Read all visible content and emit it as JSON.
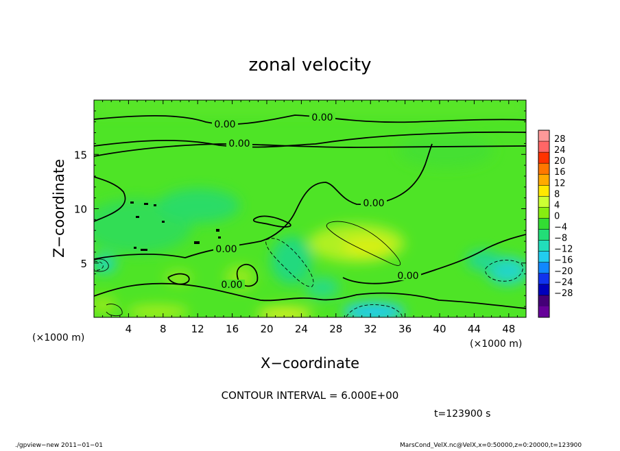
{
  "chart_data": {
    "type": "heatmap",
    "title": "zonal velocity",
    "xlabel": "X−coordinate",
    "ylabel": "Z−coordinate",
    "x_unit": "(×1000 m)",
    "y_unit": "(×1000 m)",
    "xlim": [
      0,
      50
    ],
    "ylim": [
      0,
      20
    ],
    "x_ticks": [
      "4",
      "8",
      "12",
      "16",
      "20",
      "24",
      "28",
      "32",
      "36",
      "40",
      "44",
      "48"
    ],
    "x_tick_values": [
      4,
      8,
      12,
      16,
      20,
      24,
      28,
      32,
      36,
      40,
      44,
      48
    ],
    "y_ticks": [
      "5",
      "10",
      "15"
    ],
    "y_tick_values": [
      5,
      10,
      15
    ],
    "contour_interval_label": "CONTOUR INTERVAL = 6.000E+00",
    "time_label": "t=123900 s",
    "contour_labels": [
      "0.00",
      "0.00",
      "0.00",
      "0.00",
      "0.00",
      "0.00",
      "0.00"
    ],
    "colorbar": {
      "labels": [
        "28",
        "24",
        "20",
        "16",
        "12",
        "8",
        "4",
        "0",
        "−4",
        "−8",
        "−12",
        "−16",
        "−20",
        "−24",
        "−28"
      ],
      "colors": [
        "#ff9999",
        "#ff6666",
        "#ff3300",
        "#ff7700",
        "#ffaa00",
        "#ffe800",
        "#ccff33",
        "#88ee11",
        "#33dd33",
        "#22dd77",
        "#22ddbb",
        "#22ccee",
        "#1188ff",
        "#1133ee",
        "#0000bb",
        "#440077",
        "#660099"
      ]
    }
  },
  "footer": {
    "left": "./gpview−new  2011−01−01",
    "right": "MarsCond_VelX.nc@VelX,x=0:50000,z=0:20000,t=123900"
  }
}
